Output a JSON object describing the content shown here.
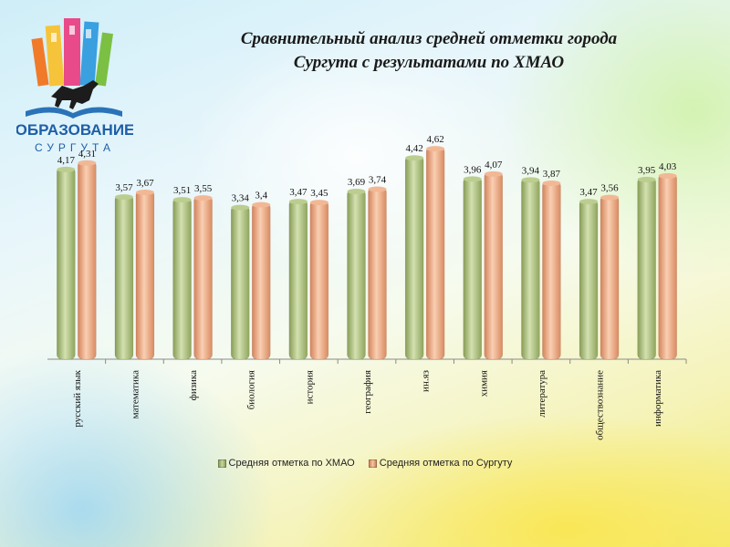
{
  "logo": {
    "word1": "ОБРАЗОВАНИЕ",
    "word2": "СУРГУТА"
  },
  "chart_data": {
    "type": "bar",
    "title_line1": "Сравнительный анализ средней отметки города",
    "title_line2": "Сургута с результатами по ХМАО",
    "categories": [
      "русский язык",
      "математика",
      "физика",
      "биология",
      "история",
      "география",
      "ин.яз",
      "химия",
      "литература",
      "обществознание",
      "информатика"
    ],
    "series": [
      {
        "name": "Средняя отметка по ХМАО",
        "values": [
          4.17,
          3.57,
          3.51,
          3.34,
          3.47,
          3.69,
          4.42,
          3.96,
          3.94,
          3.47,
          3.95
        ],
        "labels": [
          "4,17",
          "3,57",
          "3,51",
          "3,34",
          "3,47",
          "3,69",
          "4,42",
          "3,96",
          "3,94",
          "3,47",
          "3,95"
        ],
        "color": "#a9bd79"
      },
      {
        "name": "Средняя отметка по Сургуту",
        "values": [
          4.31,
          3.67,
          3.55,
          3.4,
          3.45,
          3.74,
          4.62,
          4.07,
          3.87,
          3.56,
          4.03
        ],
        "labels": [
          "4,31",
          "3,67",
          "3,55",
          "3,4",
          "3,45",
          "3,74",
          "4,62",
          "4,07",
          "3,87",
          "3,56",
          "4,03"
        ],
        "color": "#eba27a"
      }
    ],
    "ylim": [
      0,
      5
    ],
    "grid": false,
    "legend_position": "bottom"
  }
}
